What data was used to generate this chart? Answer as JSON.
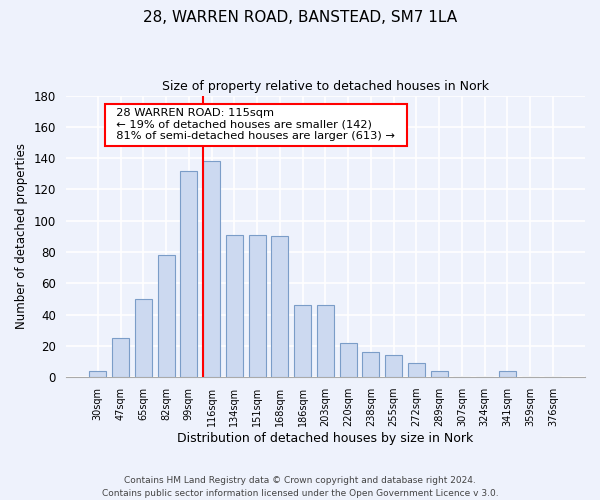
{
  "title1": "28, WARREN ROAD, BANSTEAD, SM7 1LA",
  "title2": "Size of property relative to detached houses in Nork",
  "xlabel": "Distribution of detached houses by size in Nork",
  "ylabel": "Number of detached properties",
  "bar_labels": [
    "30sqm",
    "47sqm",
    "65sqm",
    "82sqm",
    "99sqm",
    "116sqm",
    "134sqm",
    "151sqm",
    "168sqm",
    "186sqm",
    "203sqm",
    "220sqm",
    "238sqm",
    "255sqm",
    "272sqm",
    "289sqm",
    "307sqm",
    "324sqm",
    "341sqm",
    "359sqm",
    "376sqm"
  ],
  "bar_values": [
    4,
    25,
    50,
    78,
    132,
    138,
    91,
    91,
    90,
    46,
    46,
    22,
    16,
    14,
    9,
    4,
    0,
    0,
    4,
    0,
    0
  ],
  "bar_color": "#ccd9f0",
  "bar_edge_color": "#7b9dc8",
  "ref_line_index": 5,
  "annotation_title": "28 WARREN ROAD: 115sqm",
  "annotation_line1": "← 19% of detached houses are smaller (142)",
  "annotation_line2": "81% of semi-detached houses are larger (613) →",
  "ylim": [
    0,
    180
  ],
  "yticks": [
    0,
    20,
    40,
    60,
    80,
    100,
    120,
    140,
    160,
    180
  ],
  "footer1": "Contains HM Land Registry data © Crown copyright and database right 2024.",
  "footer2": "Contains public sector information licensed under the Open Government Licence v 3.0.",
  "bg_color": "#eef2fc",
  "grid_color": "#c8d0e8"
}
